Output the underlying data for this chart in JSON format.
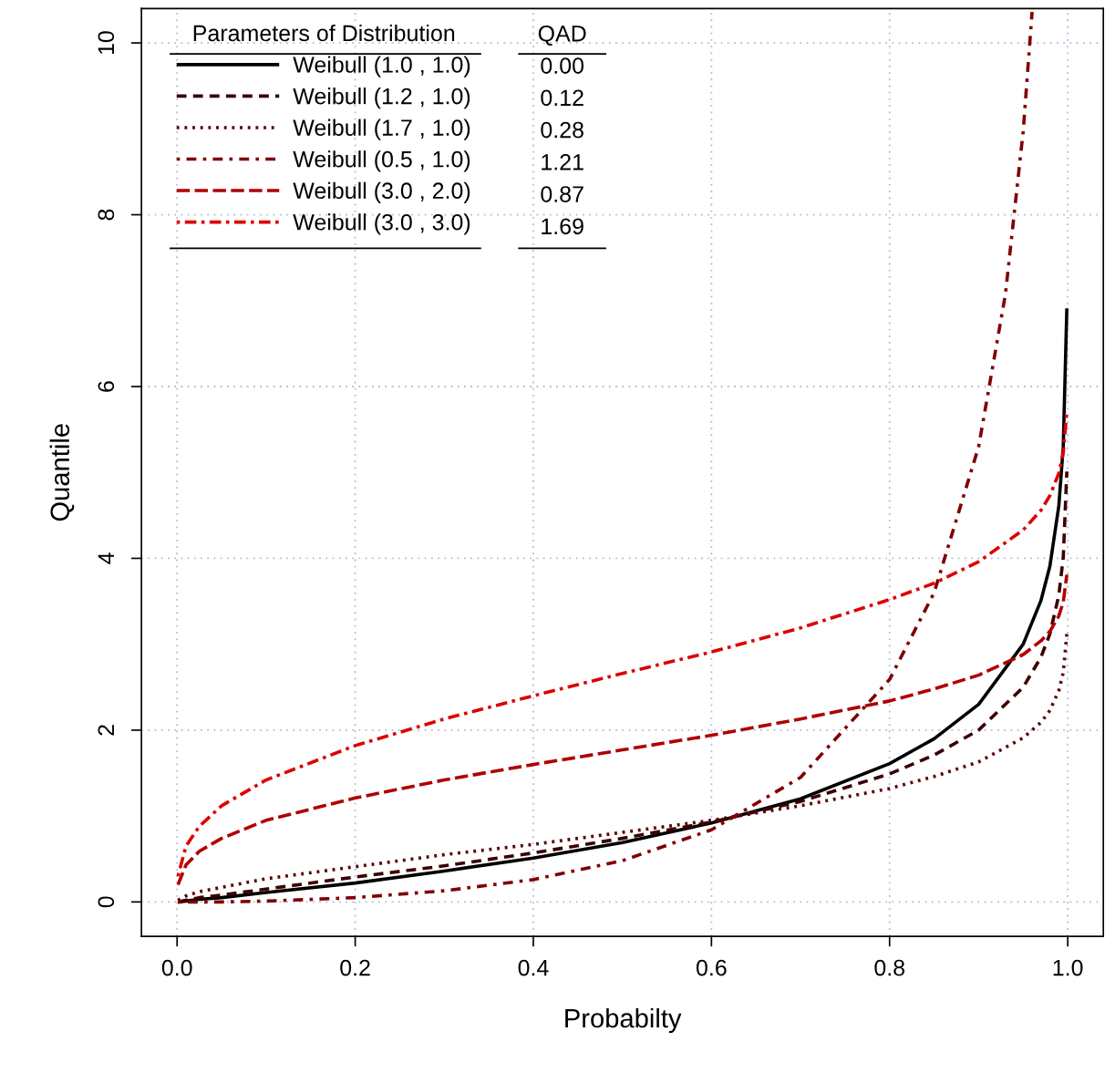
{
  "chart_data": {
    "type": "line",
    "xlabel": "Probabilty",
    "ylabel": "Quantile",
    "legend_title": "Parameters of Distribution",
    "x": [
      0.001,
      0.01,
      0.025,
      0.05,
      0.1,
      0.2,
      0.3,
      0.4,
      0.5,
      0.6,
      0.7,
      0.8,
      0.85,
      0.9,
      0.95,
      0.97,
      0.98,
      0.99,
      0.995,
      0.999
    ],
    "series": [
      {
        "name": "Weibull (1.0 , 1.0)",
        "color": "#000000",
        "line_style": "solid",
        "values": [
          0.0,
          0.01,
          0.03,
          0.05,
          0.11,
          0.22,
          0.36,
          0.51,
          0.69,
          0.92,
          1.2,
          1.61,
          1.9,
          2.3,
          3.0,
          3.51,
          3.91,
          4.61,
          5.3,
          6.91
        ]
      },
      {
        "name": "Weibull (1.2 , 1.0)",
        "color": "#3b0000",
        "line_style": "dashed",
        "values": [
          0.0,
          0.02,
          0.05,
          0.08,
          0.15,
          0.29,
          0.42,
          0.57,
          0.74,
          0.93,
          1.17,
          1.49,
          1.71,
          2.0,
          2.5,
          2.85,
          3.12,
          3.57,
          4.01,
          5.01
        ]
      },
      {
        "name": "Weibull (1.7 , 1.0)",
        "color": "#5c0000",
        "line_style": "dotted",
        "values": [
          0.02,
          0.07,
          0.12,
          0.17,
          0.27,
          0.41,
          0.55,
          0.67,
          0.81,
          0.95,
          1.12,
          1.32,
          1.46,
          1.63,
          1.91,
          2.09,
          2.23,
          2.46,
          2.67,
          3.12
        ]
      },
      {
        "name": "Weibull (0.5 , 1.0)",
        "color": "#7f0000",
        "line_style": "dashdot",
        "x": [
          0.001,
          0.01,
          0.025,
          0.05,
          0.1,
          0.2,
          0.3,
          0.4,
          0.5,
          0.6,
          0.7,
          0.8,
          0.85,
          0.9,
          0.93,
          0.95,
          0.96
        ],
        "values": [
          0.0,
          0.0,
          0.0,
          0.0,
          0.01,
          0.05,
          0.13,
          0.26,
          0.48,
          0.84,
          1.45,
          2.59,
          3.6,
          5.3,
          7.07,
          8.97,
          10.36
        ]
      },
      {
        "name": "Weibull (3.0 , 2.0)",
        "color": "#b00000",
        "line_style": "longdash",
        "values": [
          0.2,
          0.43,
          0.59,
          0.74,
          0.95,
          1.21,
          1.42,
          1.6,
          1.77,
          1.94,
          2.13,
          2.34,
          2.48,
          2.64,
          2.88,
          3.04,
          3.15,
          3.33,
          3.49,
          3.81
        ]
      },
      {
        "name": "Weibull (3.0 , 3.0)",
        "color": "#dd0000",
        "line_style": "dashdotlong",
        "values": [
          0.3,
          0.65,
          0.88,
          1.12,
          1.42,
          1.82,
          2.13,
          2.4,
          2.66,
          2.91,
          3.19,
          3.52,
          3.71,
          3.96,
          4.33,
          4.56,
          4.73,
          4.99,
          5.23,
          5.71
        ]
      }
    ],
    "annotations": [
      "QAD",
      "0.00",
      "0.12",
      "0.28",
      "1.21",
      "0.87",
      "1.69"
    ],
    "xlim": [
      -0.04,
      1.04
    ],
    "ylim": [
      -0.4,
      10.4
    ],
    "xticks": [
      {
        "value": 0,
        "label": "0.0"
      },
      {
        "value": 0.2,
        "label": "0.2"
      },
      {
        "value": 0.4,
        "label": "0.4"
      },
      {
        "value": 0.6,
        "label": "0.6"
      },
      {
        "value": 0.8,
        "label": "0.8"
      },
      {
        "value": 1,
        "label": "1.0"
      }
    ],
    "yticks": [
      0,
      2,
      4,
      6,
      8,
      10
    ],
    "grid": true,
    "legend": "top left"
  }
}
